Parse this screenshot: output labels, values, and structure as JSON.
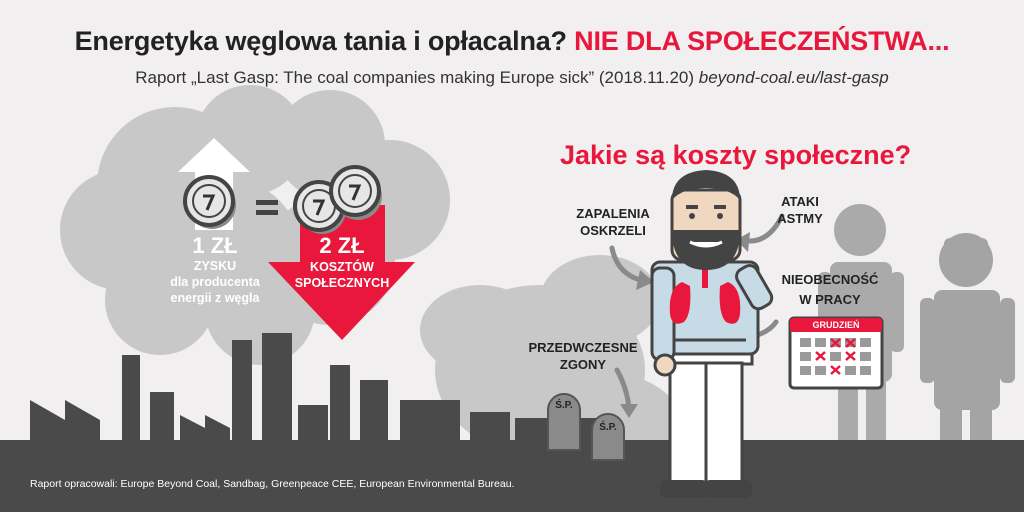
{
  "header": {
    "title_main": "Energetyka węglowa tania i opłacalna?",
    "title_highlight": "NIE DLA SPOŁECZEŃSTWA...",
    "subtitle_text": "Raport „Last Gasp: The coal companies making Europe sick” (2018.11.20)",
    "subtitle_url": "beyond-coal.eu/last-gasp"
  },
  "profit": {
    "amount": "1 ZŁ",
    "line1": "ZYSKU",
    "line2": "dla producenta",
    "line3": "energii z węgla",
    "equals": "="
  },
  "cost": {
    "amount": "2 ZŁ",
    "line1": "KOSZTÓW",
    "line2": "SPOŁECZNYCH"
  },
  "question": "Jakie są koszty społeczne?",
  "labels": {
    "bronchitis_1": "ZAPALENIA",
    "bronchitis_2": "OSKRZELI",
    "asthma_1": "ATAKI",
    "asthma_2": "ASTMY",
    "absence_1": "NIEOBECNOŚĆ",
    "absence_2": "W PRACY",
    "deaths_1": "PRZEDWCZESNE",
    "deaths_2": "ZGONY"
  },
  "calendar_month": "GRUDZIEŃ",
  "tombstone_text": "Ś.P.",
  "footer": "Raport opracowali: Europe Beyond Coal, Sandbag, Greenpeace CEE, European Environmental Bureau.",
  "colors": {
    "accent_red": "#e8173b",
    "smoke_grey": "#c9c9c9",
    "dark_grey": "#555555",
    "light_grey": "#a9a9a9"
  }
}
